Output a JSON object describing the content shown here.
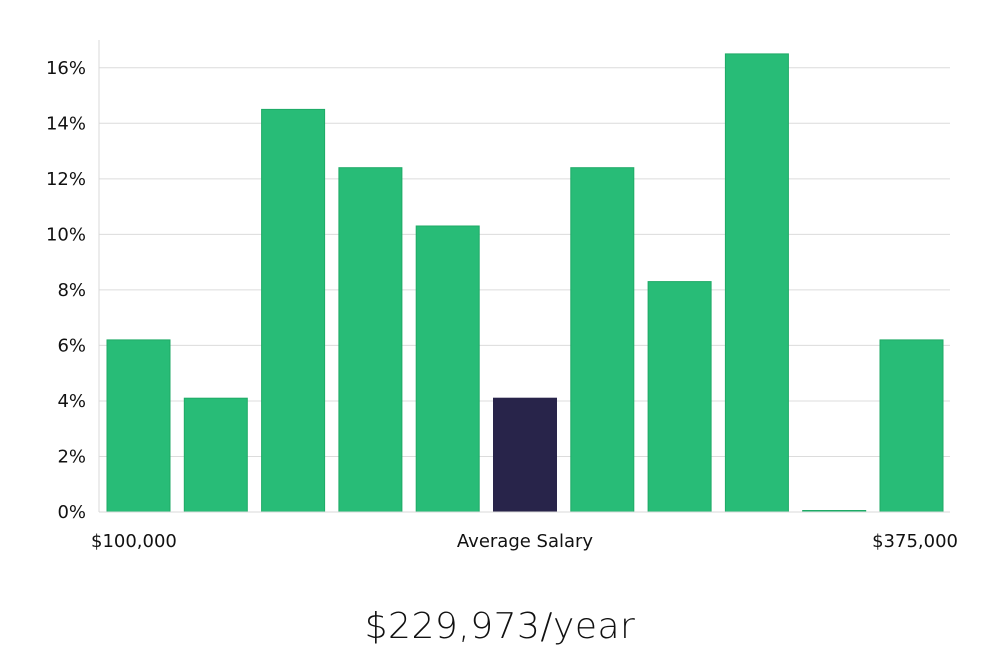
{
  "chart_data": {
    "type": "bar",
    "title": "",
    "xlabel": "Average Salary",
    "ylabel": "",
    "x_range_labels": {
      "min": "$100,000",
      "max": "$375,000"
    },
    "ylim": [
      0,
      17
    ],
    "y_ticks": [
      0,
      2,
      4,
      6,
      8,
      10,
      12,
      14,
      16
    ],
    "y_tick_suffix": "%",
    "grid": true,
    "values": [
      6.2,
      4.1,
      14.5,
      12.4,
      10.3,
      4.1,
      12.4,
      8.3,
      16.5,
      0.0,
      6.2
    ],
    "highlight_index": 5,
    "colors": {
      "bar": "#28bc77",
      "bar_stroke": "#1eaa66",
      "highlight": "#28244a",
      "grid": "#dcdcdc",
      "axis": "#d8d8d8"
    }
  },
  "salary": {
    "display": "$229,973/year"
  }
}
